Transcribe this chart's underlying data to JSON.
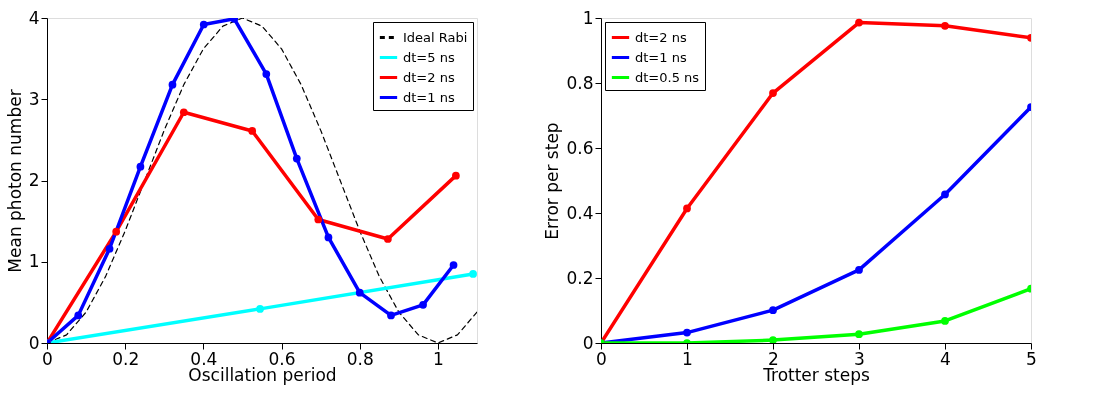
{
  "chart_data": [
    {
      "type": "line",
      "xlabel": "Oscillation period",
      "ylabel": "Mean photon number",
      "xlim": [
        0,
        1.1
      ],
      "xticks": [
        0,
        0.2,
        0.4,
        0.6,
        0.8,
        1
      ],
      "ylim": [
        0,
        4
      ],
      "yticks": [
        0,
        1,
        2,
        3,
        4
      ],
      "grid": false,
      "legend": "top right",
      "series": [
        {
          "name": "Ideal Rabi",
          "color": "#000000",
          "line_style": "dashed",
          "marker": "none",
          "x": [
            0,
            0.05,
            0.1,
            0.15,
            0.2,
            0.25,
            0.3,
            0.35,
            0.4,
            0.45,
            0.5,
            0.55,
            0.6,
            0.65,
            0.7,
            0.75,
            0.8,
            0.85,
            0.9,
            0.95,
            1.0,
            1.05,
            1.1
          ],
          "values": [
            0,
            0.1,
            0.38,
            0.82,
            1.38,
            2.0,
            2.62,
            3.18,
            3.62,
            3.9,
            4.0,
            3.9,
            3.62,
            3.18,
            2.62,
            2.0,
            1.38,
            0.82,
            0.38,
            0.1,
            0,
            0.1,
            0.38
          ]
        },
        {
          "name": "dt=5 ns",
          "color": "#00ffff",
          "line_style": "solid",
          "marker": "circle",
          "x": [
            0,
            0.545,
            1.09
          ],
          "values": [
            0,
            0.42,
            0.85
          ]
        },
        {
          "name": "dt=2 ns",
          "color": "#ff0000",
          "line_style": "solid",
          "marker": "circle",
          "x": [
            0,
            0.177,
            0.35,
            0.525,
            0.694,
            0.872,
            1.046
          ],
          "values": [
            0,
            1.37,
            2.84,
            2.61,
            1.52,
            1.28,
            2.06
          ]
        },
        {
          "name": "dt=1 ns",
          "color": "#0000ff",
          "line_style": "solid",
          "marker": "circle",
          "x": [
            0,
            0.08,
            0.16,
            0.239,
            0.321,
            0.401,
            0.479,
            0.561,
            0.639,
            0.72,
            0.8,
            0.88,
            0.962,
            1.04
          ],
          "values": [
            0,
            0.34,
            1.16,
            2.17,
            3.18,
            3.92,
            3.99,
            3.31,
            2.27,
            1.3,
            0.62,
            0.34,
            0.47,
            0.96
          ]
        }
      ]
    },
    {
      "type": "line",
      "xlabel": "Trotter steps",
      "ylabel": "Error per step",
      "xlim": [
        0,
        5
      ],
      "xticks": [
        0,
        1,
        2,
        3,
        4,
        5
      ],
      "ylim": [
        0,
        1
      ],
      "yticks": [
        0,
        0.2,
        0.4,
        0.6,
        0.8,
        1
      ],
      "grid": false,
      "legend": "top left",
      "x": [
        0,
        1,
        2,
        3,
        4,
        5
      ],
      "series": [
        {
          "name": "dt=2 ns",
          "color": "#ff0000",
          "line_style": "solid",
          "marker": "circle",
          "values": [
            0,
            0.414,
            0.769,
            0.986,
            0.976,
            0.939
          ]
        },
        {
          "name": "dt=1 ns",
          "color": "#0000ff",
          "line_style": "solid",
          "marker": "circle",
          "values": [
            0,
            0.032,
            0.101,
            0.225,
            0.457,
            0.726
          ]
        },
        {
          "name": "dt=0.5 ns",
          "color": "#00ff00",
          "line_style": "solid",
          "marker": "circle",
          "values": [
            0,
            0,
            0.009,
            0.027,
            0.068,
            0.167
          ]
        }
      ]
    }
  ]
}
